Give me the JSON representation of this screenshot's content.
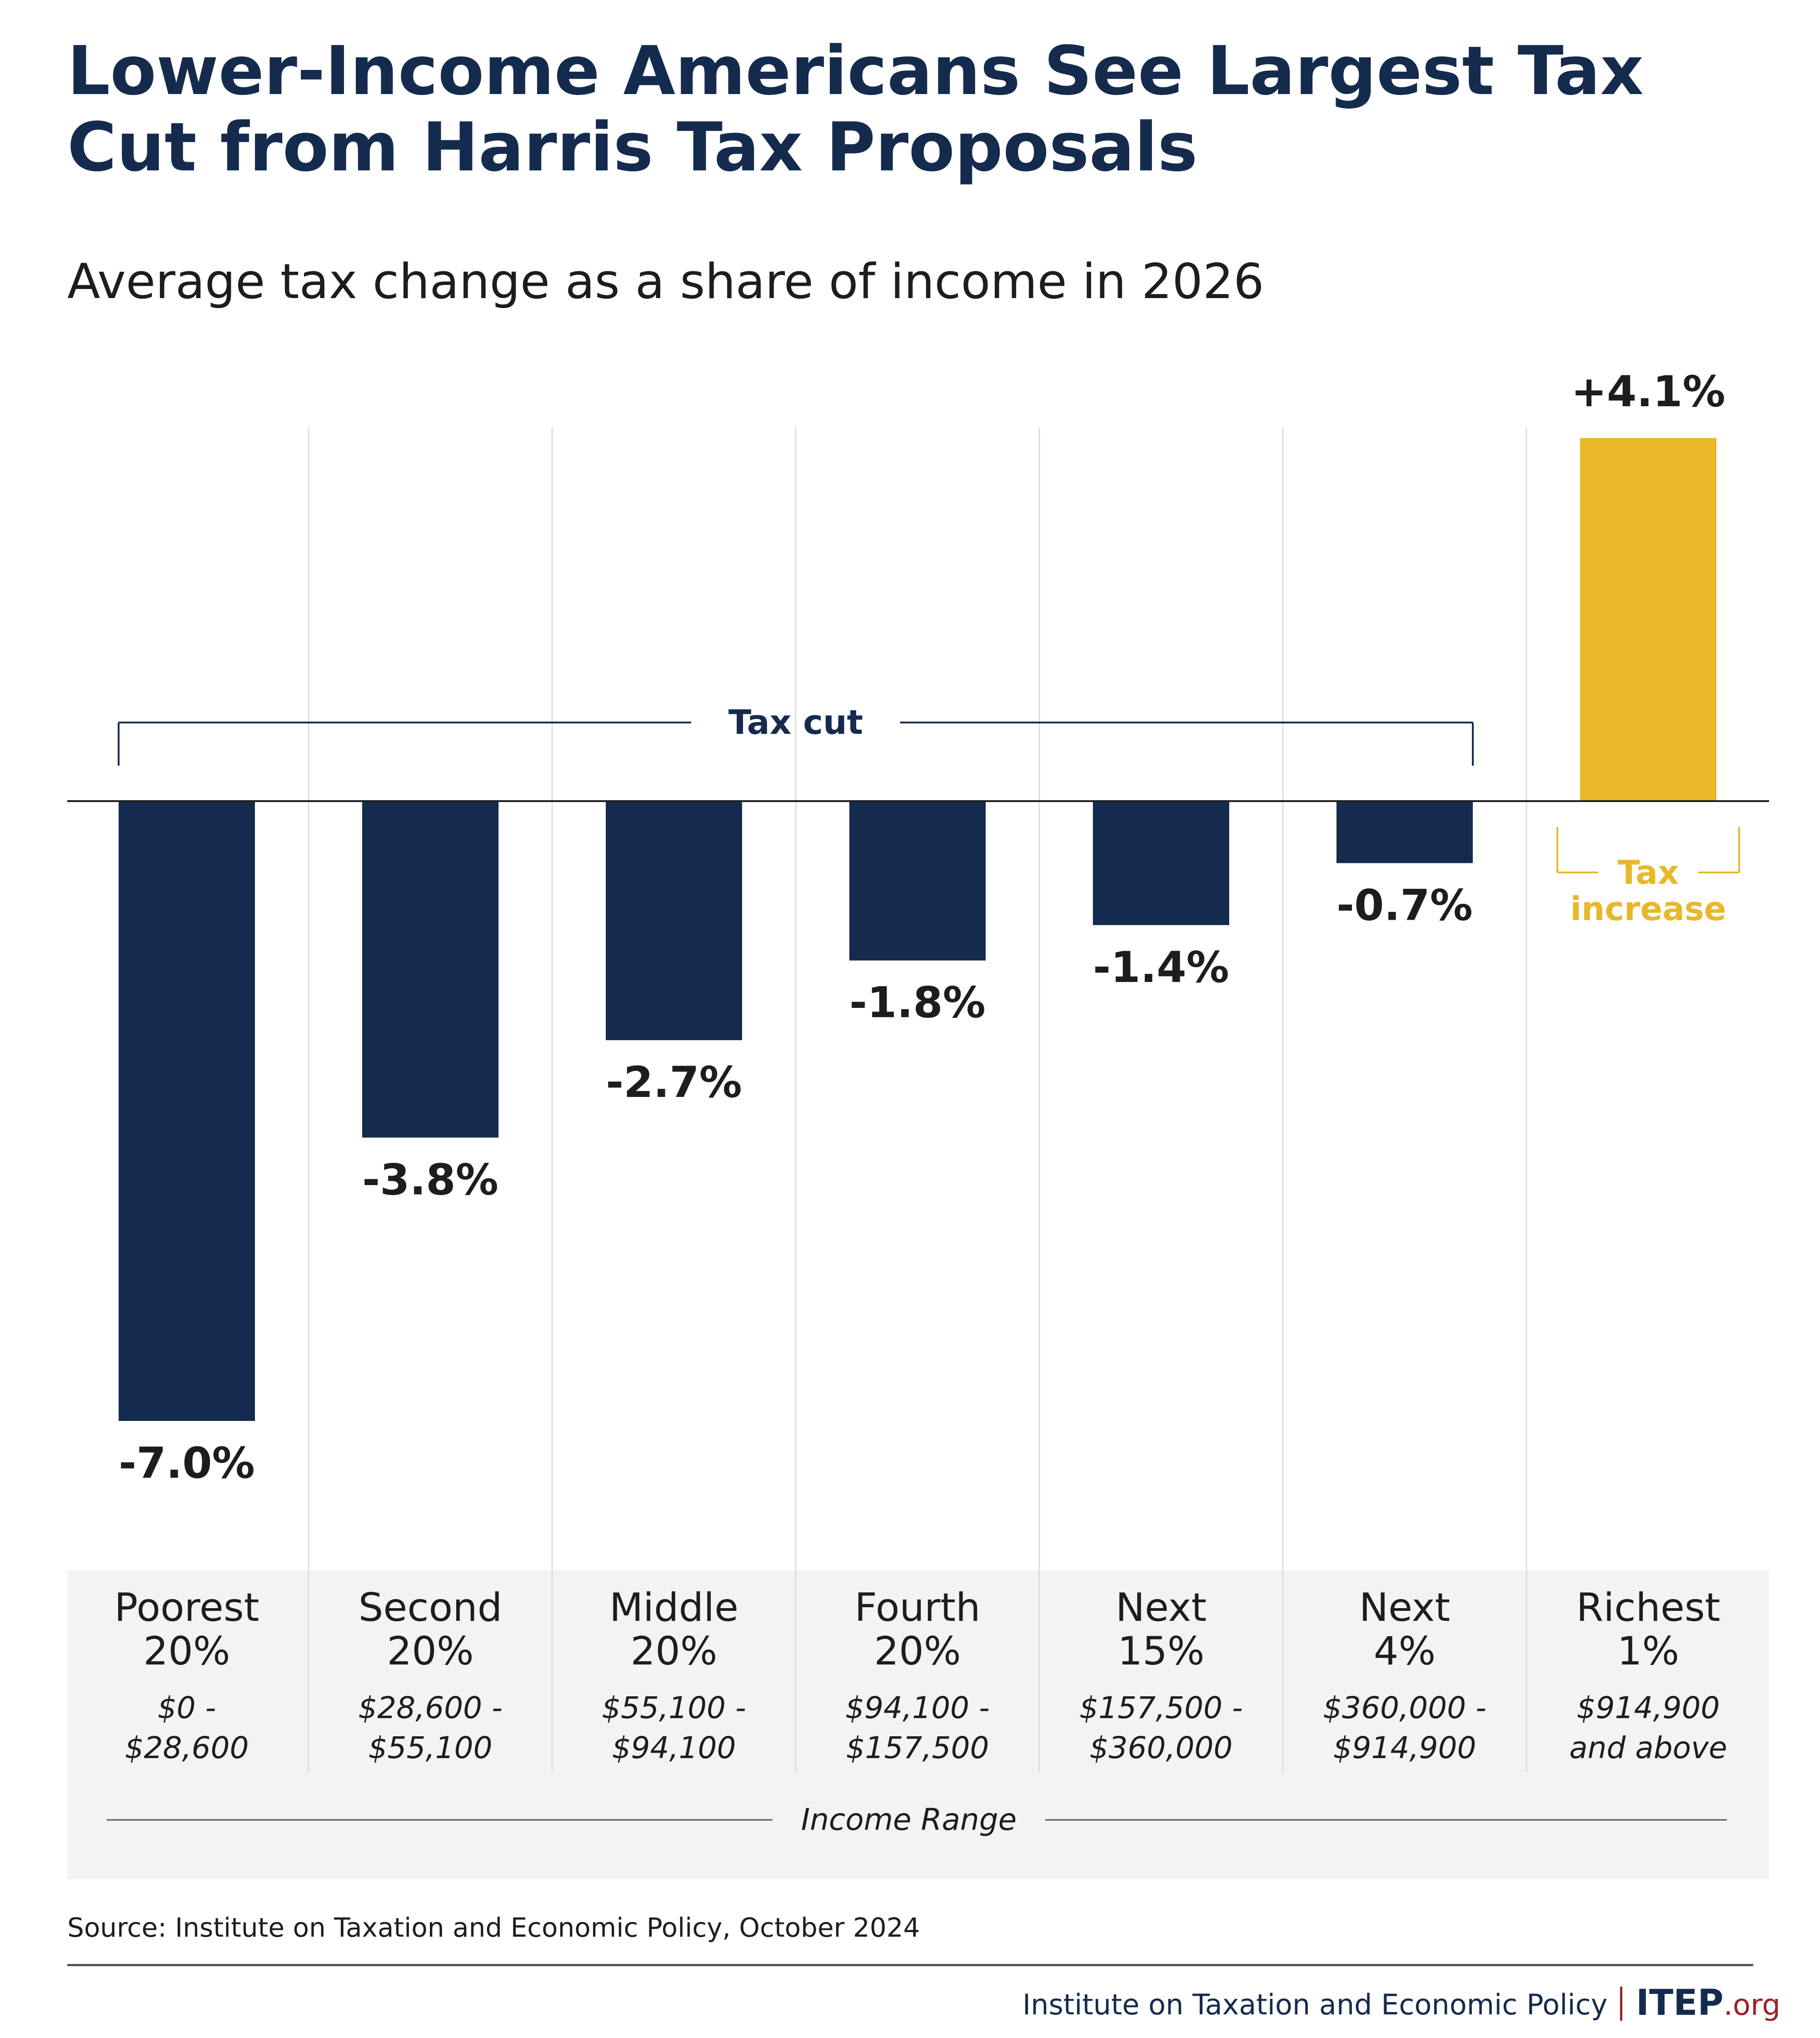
{
  "title": "Lower-Income Americans See Largest Tax Cut from Harris Tax Proposals",
  "subtitle": "Average tax change as a share of income in 2026",
  "chart_data": {
    "type": "bar",
    "categories": [
      [
        "Poorest",
        "20%"
      ],
      [
        "Second",
        "20%"
      ],
      [
        "Middle",
        "20%"
      ],
      [
        "Fourth",
        "20%"
      ],
      [
        "Next",
        "15%"
      ],
      [
        "Next",
        "4%"
      ],
      [
        "Richest",
        "1%"
      ]
    ],
    "income_ranges": [
      [
        "$0 -",
        "$28,600"
      ],
      [
        "$28,600 -",
        "$55,100"
      ],
      [
        "$55,100 -",
        "$94,100"
      ],
      [
        "$94,100 -",
        "$157,500"
      ],
      [
        "$157,500 -",
        "$360,000"
      ],
      [
        "$360,000 -",
        "$914,900"
      ],
      [
        "$914,900",
        "and above"
      ]
    ],
    "values": [
      -7.0,
      -3.8,
      -2.7,
      -1.8,
      -1.4,
      -0.7,
      4.1
    ],
    "value_labels": [
      "-7.0%",
      "-3.8%",
      "-2.7%",
      "-1.8%",
      "-1.4%",
      "-0.7%",
      "+4.1%"
    ],
    "xlabel": "Income Range",
    "ylim": [
      -7.0,
      4.1
    ],
    "grid": "vertical separators",
    "annotations": {
      "tax_cut": "Tax cut",
      "tax_increase": [
        "Tax",
        "increase"
      ]
    },
    "colors": {
      "cut": "#152b4e",
      "increase": "#e8b82a"
    }
  },
  "source": "Source: Institute on Taxation and Economic Policy, October 2024",
  "footer": {
    "org_name": "Institute on Taxation and Economic Policy",
    "logo_main": "ITEP",
    "logo_suffix": ".org"
  }
}
